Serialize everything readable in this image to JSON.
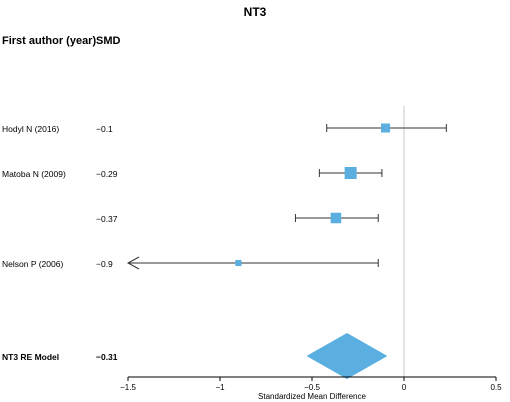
{
  "chart_data": {
    "type": "forest",
    "title": "NT3",
    "column_headers": {
      "study": "First author (year)",
      "effect": "SMD"
    },
    "xlabel": "Standardized Mean Difference",
    "xlim": [
      -1.5,
      0.5
    ],
    "xticks": [
      -1.5,
      -1,
      -0.5,
      0,
      0.5
    ],
    "xtick_labels": [
      "−1.5",
      "−1",
      "−0.5",
      "0",
      "0.5"
    ],
    "reference_line": 0,
    "studies": [
      {
        "label": "Hodyl N (2016)",
        "smd_label": "−0.1",
        "smd": -0.1,
        "ci_low": -0.42,
        "ci_high": 0.23,
        "weight": 0.45
      },
      {
        "label": "Matoba N (2009)",
        "smd_label": "−0.29",
        "smd": -0.29,
        "ci_low": -0.46,
        "ci_high": -0.12,
        "weight": 1.0
      },
      {
        "label": "",
        "smd_label": "−0.37",
        "smd": -0.37,
        "ci_low": -0.59,
        "ci_high": -0.14,
        "weight": 0.7
      },
      {
        "label": "Nelson P (2006)",
        "smd_label": "−0.9",
        "smd": -0.9,
        "ci_low": -1.5,
        "ci_high": -0.14,
        "weight": 0.12,
        "ci_truncated_left": true
      }
    ],
    "summary": {
      "label": "NT3 RE Model",
      "smd_label": "−0.31",
      "smd": -0.31,
      "ci_low": -0.53,
      "ci_high": -0.09
    },
    "colors": {
      "marker": "#5aaee0",
      "ci_line": "#333333",
      "reference_line": "#c8c8c8"
    }
  }
}
